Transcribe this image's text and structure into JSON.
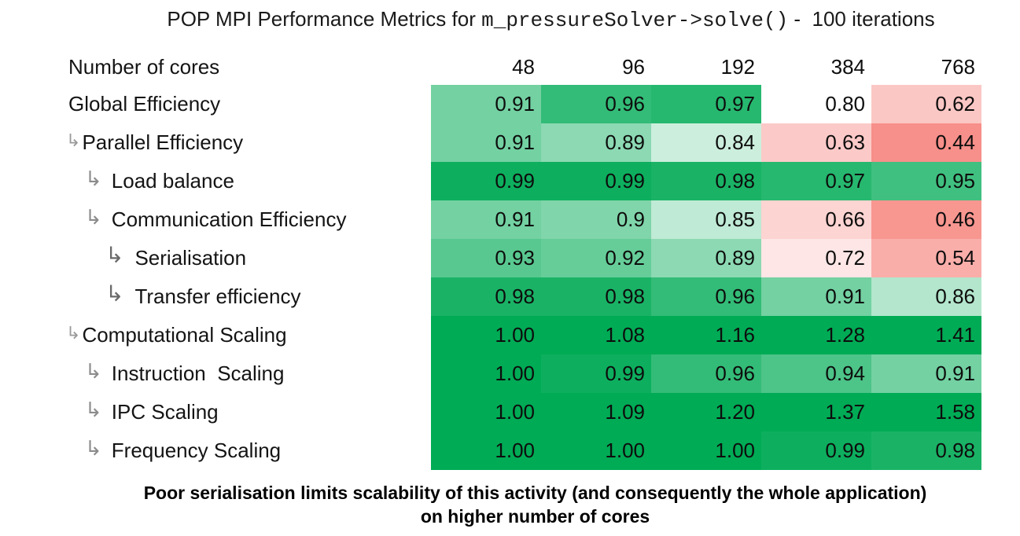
{
  "title": {
    "prefix": "POP MPI Performance Metrics for ",
    "code": "m_pressureSolver->solve()",
    "suffix": " -  100 iterations"
  },
  "footer": {
    "line1": "Poor serialisation limits scalability of this activity (and consequently the whole application)",
    "line2": "on higher number of cores"
  },
  "chart_data": {
    "type": "heatmap",
    "title": "POP MPI Performance Metrics for m_pressureSolver->solve() - 100 iterations",
    "columns_header": "Number of cores",
    "columns": [
      "48",
      "96",
      "192",
      "384",
      "768"
    ],
    "rows": [
      {
        "label": "Global Efficiency",
        "level": 0,
        "values": [
          0.91,
          0.96,
          0.97,
          0.8,
          0.62
        ],
        "display": [
          "0.91",
          "0.96",
          "0.97",
          "0.80",
          "0.62"
        ]
      },
      {
        "label": "Parallel Efficiency",
        "level": 1,
        "values": [
          0.91,
          0.89,
          0.84,
          0.63,
          0.44
        ],
        "display": [
          "0.91",
          "0.89",
          "0.84",
          "0.63",
          "0.44"
        ]
      },
      {
        "label": "Load balance",
        "level": 2,
        "values": [
          0.99,
          0.99,
          0.98,
          0.97,
          0.95
        ],
        "display": [
          "0.99",
          "0.99",
          "0.98",
          "0.97",
          "0.95"
        ]
      },
      {
        "label": "Communication Efficiency",
        "level": 2,
        "values": [
          0.91,
          0.9,
          0.85,
          0.66,
          0.46
        ],
        "display": [
          "0.91",
          "0.9",
          "0.85",
          "0.66",
          "0.46"
        ]
      },
      {
        "label": "Serialisation",
        "level": 3,
        "values": [
          0.93,
          0.92,
          0.89,
          0.72,
          0.54
        ],
        "display": [
          "0.93",
          "0.92",
          "0.89",
          "0.72",
          "0.54"
        ]
      },
      {
        "label": "Transfer efficiency",
        "level": 3,
        "values": [
          0.98,
          0.98,
          0.96,
          0.91,
          0.86
        ],
        "display": [
          "0.98",
          "0.98",
          "0.96",
          "0.91",
          "0.86"
        ]
      },
      {
        "label": "Computational Scaling",
        "level": 1,
        "values": [
          1.0,
          1.08,
          1.16,
          1.28,
          1.41
        ],
        "display": [
          "1.00",
          "1.08",
          "1.16",
          "1.28",
          "1.41"
        ]
      },
      {
        "label": "Instruction  Scaling",
        "level": 2,
        "values": [
          1.0,
          0.99,
          0.96,
          0.94,
          0.91
        ],
        "display": [
          "1.00",
          "0.99",
          "0.96",
          "0.94",
          "0.91"
        ]
      },
      {
        "label": "IPC Scaling",
        "level": 2,
        "values": [
          1.0,
          1.09,
          1.2,
          1.37,
          1.58
        ],
        "display": [
          "1.00",
          "1.09",
          "1.20",
          "1.37",
          "1.58"
        ]
      },
      {
        "label": "Frequency Scaling",
        "level": 2,
        "values": [
          1.0,
          1.0,
          1.0,
          0.99,
          0.98
        ],
        "display": [
          "1.00",
          "1.00",
          "1.00",
          "0.99",
          "0.98"
        ]
      }
    ],
    "colormap": {
      "positive": "#00ab55",
      "negative": "#f4645c",
      "neutral": "#ffffff",
      "midpoint": 0.8,
      "green_saturates_at": 1.0,
      "red_saturates_at": 0.3
    },
    "branch_arrow_icon": "↳",
    "legend_position": "none",
    "grid": false
  }
}
